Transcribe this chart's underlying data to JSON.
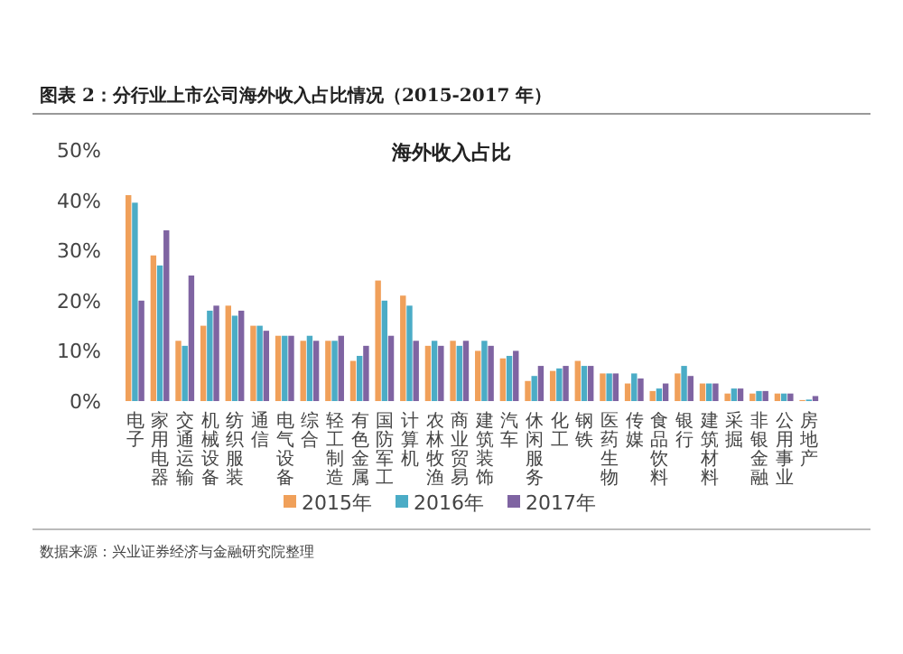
{
  "chart_data": {
    "type": "bar",
    "title": "图表 2：分行业上市公司海外收入占比情况（2015-2017 年）",
    "subtitle": "海外收入占比",
    "categories": [
      "电子",
      "家用电器",
      "交通运输",
      "机械设备",
      "纺织服装",
      "通信",
      "电气设备",
      "综合",
      "轻工制造",
      "有色金属",
      "国防军工",
      "计算机",
      "农林牧渔",
      "商业贸易",
      "建筑装饰",
      "汽车",
      "休闲服务",
      "化工",
      "钢铁",
      "医药生物",
      "传媒",
      "食品饮料",
      "银行",
      "建筑材料",
      "采掘",
      "非银金融",
      "公用事业",
      "房地产"
    ],
    "series": [
      {
        "name": "2015年",
        "color": "#f0a05a",
        "values": [
          41,
          29,
          12,
          15,
          19,
          15,
          13,
          12,
          12,
          8,
          24,
          21,
          11,
          12,
          10,
          8.5,
          4,
          6,
          8,
          5.5,
          3.5,
          2,
          5.5,
          3.5,
          1.5,
          1.5,
          1.5,
          0.2
        ]
      },
      {
        "name": "2016年",
        "color": "#4bacc6",
        "values": [
          39.5,
          27,
          11,
          18,
          17,
          15,
          13,
          13,
          12,
          9,
          20,
          19,
          12,
          11,
          12,
          9,
          5,
          6.5,
          7,
          5.5,
          5.5,
          2.5,
          7,
          3.5,
          2.5,
          2,
          1.5,
          0.3
        ]
      },
      {
        "name": "2017年",
        "color": "#7f64a2",
        "values": [
          20,
          34,
          25,
          19,
          18,
          14,
          13,
          12,
          13,
          11,
          13,
          12,
          11,
          12,
          11,
          10,
          7,
          7,
          7,
          5.5,
          4.5,
          3.5,
          5,
          3.5,
          2.5,
          2,
          1.5,
          1
        ]
      }
    ],
    "ylim": [
      0,
      50
    ],
    "yticks": [
      {
        "value": 0,
        "label": "0%"
      },
      {
        "value": 10,
        "label": "10%"
      },
      {
        "value": 20,
        "label": "20%"
      },
      {
        "value": 30,
        "label": "30%"
      },
      {
        "value": 40,
        "label": "40%"
      },
      {
        "value": 50,
        "label": "50%"
      }
    ],
    "grid": false,
    "legend": "bottom",
    "annotations": [
      "数据来源：兴业证券经济与金融研究院整理"
    ]
  }
}
